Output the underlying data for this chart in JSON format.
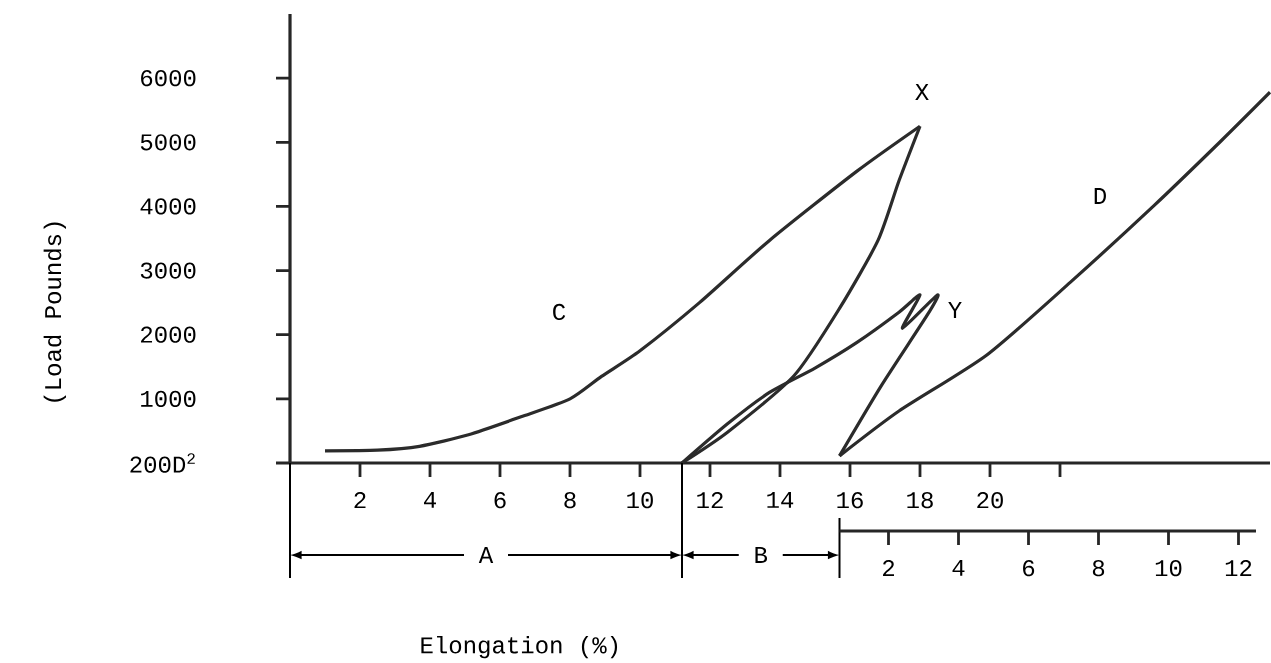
{
  "chart_data": {
    "type": "line",
    "xlabel": "Elongation (%)",
    "ylabel": "(Load Pounds)",
    "xlim": [
      0,
      28
    ],
    "xticks": [
      2,
      4,
      6,
      8,
      10,
      12,
      14,
      16,
      18,
      20,
      {
        "value": 22,
        "label": null
      }
    ],
    "ylim": [
      0,
      7000
    ],
    "yticks": [
      {
        "value": 0,
        "label": "200D$^{2}$"
      },
      1000,
      2000,
      3000,
      4000,
      5000,
      6000
    ],
    "x2lim": [
      0.6,
      12.5
    ],
    "x2ticks": [
      2,
      4,
      6,
      8,
      10,
      12
    ],
    "line_style": "solid",
    "series": [
      {
        "color": "#2b2b2b",
        "x": [
          1.0,
          2.5,
          3.7,
          5.1,
          6.6,
          8.0,
          8.9,
          10.0,
          11.7,
          13.7,
          16.2,
          18.0
        ],
        "values": [
          190,
          200,
          260,
          440,
          720,
          1000,
          1350,
          1750,
          2500,
          3470,
          4550,
          5250
        ]
      },
      {
        "color": "#2b2b2b",
        "x": [
          18.0,
          17.4,
          16.8,
          15.7,
          14.4,
          12.5,
          11.2
        ],
        "values": [
          5250,
          4400,
          3470,
          2410,
          1360,
          480,
          0
        ]
      },
      {
        "color": "#2b2b2b",
        "x": [
          11.2,
          12.5,
          13.7,
          15.0,
          16.2,
          17.4,
          18.0,
          17.5,
          18.5,
          18.2,
          16.9,
          15.7
        ],
        "values": [
          0,
          610,
          1100,
          1480,
          1880,
          2350,
          2620,
          2100,
          2620,
          2300,
          1210,
          110
        ]
      },
      {
        "color": "#2b2b2b",
        "x": [
          15.7,
          17.4,
          19.9,
          22.3,
          24.7,
          26.6,
          28.0
        ],
        "values": [
          110,
          810,
          1680,
          2820,
          4020,
          5020,
          5780
        ]
      }
    ],
    "annotations": [
      "C",
      "X",
      "Y",
      "D",
      "A",
      "B"
    ]
  }
}
